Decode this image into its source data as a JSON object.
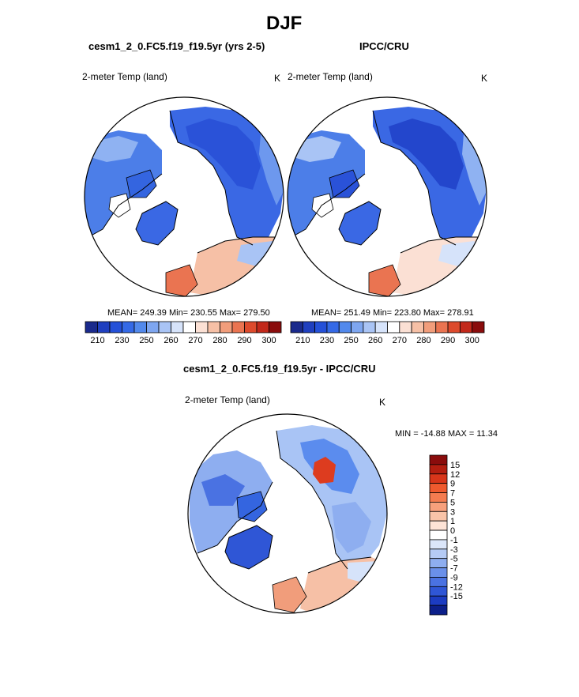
{
  "figure": {
    "season": "DJF",
    "diff_title": "cesm1_2_0.FC5.f19_f19.5yr - IPCC/CRU"
  },
  "panels": [
    {
      "title": "cesm1_2_0.FC5.f19_f19.5yr (yrs 2-5)",
      "variable": "2-meter Temp (land)",
      "units": "K",
      "stats_text": "MEAN= 249.39  Min= 230.55  Max= 279.50"
    },
    {
      "title": "IPCC/CRU",
      "variable": "2-meter Temp (land)",
      "units": "K",
      "stats_text": "MEAN= 251.49  Min= 223.80  Max= 278.91"
    },
    {
      "variable": "2-meter Temp (land)",
      "units": "K",
      "stats_text": "MIN = -14.88 MAX =  11.34"
    }
  ],
  "colorbar_abs": {
    "colors": [
      "#1a2a8c",
      "#1f3fbf",
      "#2450d8",
      "#3469e6",
      "#5289ec",
      "#7ea6f0",
      "#a9c4f5",
      "#d6e3fa",
      "#ffffff",
      "#fbe0d4",
      "#f6c0a6",
      "#f19d7b",
      "#ea7451",
      "#dd4a2c",
      "#c2281a",
      "#8a0c0c"
    ],
    "tick_labels": [
      "210",
      "230",
      "250",
      "260",
      "270",
      "280",
      "290",
      "300"
    ]
  },
  "colorbar_diff": {
    "colors": [
      "#8a0c0c",
      "#b31e10",
      "#d8361a",
      "#ef5a2e",
      "#f47c50",
      "#f7a07c",
      "#f9c4a8",
      "#fde3d6",
      "#ffffff",
      "#dbe6fa",
      "#b5cbf5",
      "#8eaef0",
      "#6a90ea",
      "#4a72e2",
      "#2f56d6",
      "#1c3cc2",
      "#0c1f8a"
    ],
    "tick_labels": [
      "15",
      "12",
      "9",
      "7",
      "5",
      "3",
      "1",
      "0",
      "-1",
      "-3",
      "-5",
      "-7",
      "-9",
      "-12",
      "-15"
    ]
  },
  "colors": {
    "deep_blue": "#2a55dc",
    "mid_blue": "#5b8cee",
    "light_blue": "#a8c4f5",
    "warm": "#f7b79a",
    "hot": "#dd3c1f"
  }
}
